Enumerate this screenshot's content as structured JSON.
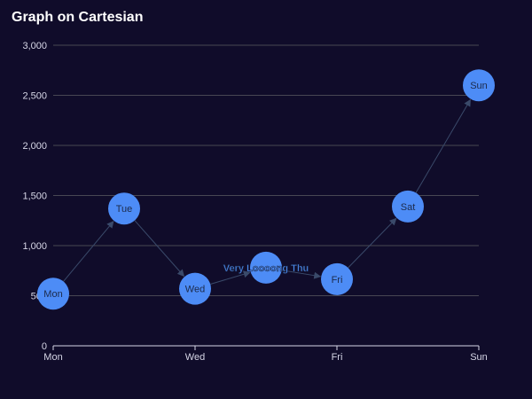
{
  "chart_data": {
    "type": "graph",
    "title": "Graph on Cartesian",
    "xaxis": {
      "type": "category",
      "categories": [
        "Mon",
        "Tue",
        "Wed",
        "Thu",
        "Fri",
        "Sat",
        "Sun"
      ],
      "tick_labels": [
        "Mon",
        "Wed",
        "Fri",
        "Sun"
      ]
    },
    "yaxis": {
      "ylim": [
        0,
        3000
      ],
      "tick_labels": [
        "0",
        "500",
        "1,000",
        "1,500",
        "2,000",
        "2,500",
        "3,000"
      ]
    },
    "nodes": [
      {
        "label": "Mon",
        "x": "Mon",
        "y": 520
      },
      {
        "label": "Tue",
        "x": "Tue",
        "y": 1370
      },
      {
        "label": "Wed",
        "x": "Wed",
        "y": 570
      },
      {
        "label": "Very Loooong Thu",
        "x": "Thu",
        "y": 780
      },
      {
        "label": "Fri",
        "x": "Fri",
        "y": 665
      },
      {
        "label": "Sat",
        "x": "Sat",
        "y": 1390
      },
      {
        "label": "Sun",
        "x": "Sun",
        "y": 2600
      }
    ],
    "edges": [
      [
        "Mon",
        "Tue"
      ],
      [
        "Tue",
        "Wed"
      ],
      [
        "Wed",
        "Very Loooong Thu"
      ],
      [
        "Very Loooong Thu",
        "Fri"
      ],
      [
        "Fri",
        "Sat"
      ],
      [
        "Sat",
        "Sun"
      ]
    ],
    "grid": true,
    "colors": {
      "background": "#100c2a",
      "node": "#4d8cf6",
      "edge": "#3a4a6a",
      "grid": "#484753",
      "axis": "#d6d6e6"
    }
  }
}
